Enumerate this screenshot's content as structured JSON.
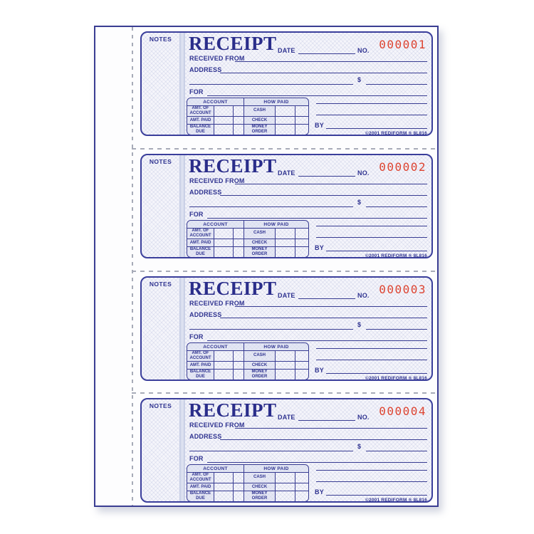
{
  "page": {
    "description": "Receipt book page with four identical numbered receipt forms and tear-off perforations"
  },
  "labels": {
    "notes": "NOTES",
    "title": "RECEIPT",
    "date": "DATE",
    "no": "NO.",
    "received_from": "RECEIVED FROM",
    "address": "ADDRESS",
    "dollar_sign": "$",
    "for": "FOR",
    "by": "BY",
    "table": {
      "account_header": "ACCOUNT",
      "how_paid_header": "HOW PAID",
      "rows": [
        {
          "account_label": "AMT. OF ACCOUNT",
          "how_paid_label": "CASH"
        },
        {
          "account_label": "AMT. PAID",
          "how_paid_label": "CHECK"
        },
        {
          "account_label": "BALANCE DUE",
          "how_paid_label": "MONEY ORDER"
        }
      ]
    },
    "footer": "©2001 REDIFORM ® 8L816"
  },
  "receipts": [
    {
      "number": "000001"
    },
    {
      "number": "000002"
    },
    {
      "number": "000003"
    },
    {
      "number": "000004"
    }
  ],
  "colors": {
    "form_ink_navy": "#2f3390",
    "serial_red": "#dd4330",
    "pattern_background": "#f5f5fb",
    "pattern_line": "#dfe2ee",
    "notes_divider": "#c3cae3",
    "perforation_gray": "#a7abb8",
    "page_border": "#3a3d92"
  }
}
